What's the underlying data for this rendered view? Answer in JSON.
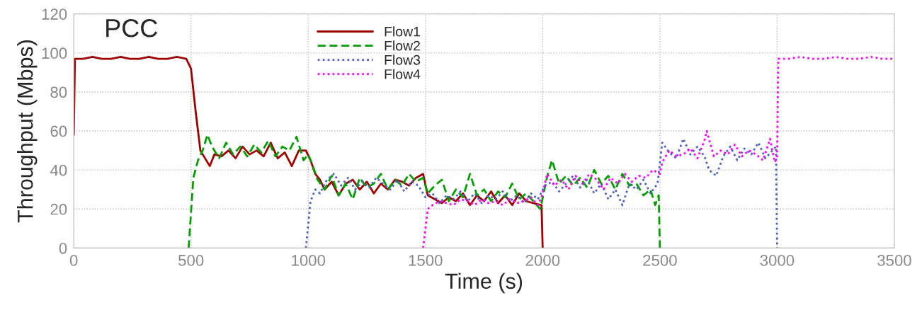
{
  "chart_data": {
    "type": "line",
    "xlabel": "Time (s)",
    "ylabel": "Throughput (Mbps)",
    "annotations": [
      "PCC"
    ],
    "xlim": [
      0,
      3500
    ],
    "xticks": [
      0,
      500,
      1000,
      1500,
      2000,
      2500,
      3000,
      3500
    ],
    "ylim": [
      0,
      120
    ],
    "yticks": [
      0,
      20,
      40,
      60,
      80,
      100,
      120
    ],
    "grid": true,
    "legend": "top",
    "series": [
      {
        "name": "Flow1",
        "color": "#a00000",
        "line_style": "solid",
        "x": [
          0,
          5,
          40,
          80,
          120,
          160,
          200,
          240,
          280,
          320,
          360,
          400,
          440,
          480,
          500,
          520,
          540,
          560,
          580,
          600,
          630,
          660,
          690,
          720,
          750,
          780,
          810,
          840,
          870,
          900,
          930,
          960,
          990,
          1010,
          1030,
          1050,
          1070,
          1100,
          1130,
          1160,
          1190,
          1220,
          1250,
          1280,
          1310,
          1340,
          1370,
          1400,
          1430,
          1460,
          1490,
          1510,
          1540,
          1570,
          1600,
          1630,
          1660,
          1690,
          1720,
          1750,
          1780,
          1810,
          1840,
          1870,
          1900,
          1930,
          1960,
          1995,
          2000
        ],
        "values": [
          58,
          97,
          97,
          98,
          97,
          97,
          98,
          97,
          97,
          98,
          97,
          97,
          98,
          97,
          92,
          70,
          50,
          46,
          42,
          48,
          47,
          50,
          46,
          52,
          48,
          50,
          47,
          54,
          46,
          49,
          42,
          50,
          50,
          45,
          38,
          35,
          30,
          34,
          27,
          33,
          35,
          30,
          34,
          28,
          33,
          30,
          35,
          34,
          32,
          36,
          38,
          27,
          25,
          23,
          26,
          24,
          28,
          22,
          27,
          24,
          29,
          23,
          27,
          22,
          28,
          24,
          23,
          22,
          0
        ]
      },
      {
        "name": "Flow2",
        "color": "#00a000",
        "line_style": "dashed",
        "x": [
          490,
          510,
          530,
          550,
          570,
          590,
          620,
          650,
          680,
          710,
          740,
          770,
          800,
          830,
          860,
          890,
          920,
          950,
          980,
          1000,
          1020,
          1040,
          1070,
          1100,
          1130,
          1160,
          1190,
          1220,
          1250,
          1280,
          1310,
          1340,
          1370,
          1400,
          1430,
          1460,
          1490,
          1510,
          1540,
          1570,
          1600,
          1630,
          1660,
          1690,
          1720,
          1750,
          1780,
          1810,
          1840,
          1870,
          1900,
          1930,
          1960,
          1990,
          2020,
          2040,
          2070,
          2100,
          2130,
          2160,
          2190,
          2220,
          2250,
          2280,
          2310,
          2340,
          2370,
          2400,
          2430,
          2460,
          2480,
          2495,
          2500
        ],
        "values": [
          0,
          36,
          45,
          50,
          58,
          52,
          46,
          54,
          48,
          52,
          47,
          53,
          49,
          55,
          47,
          52,
          50,
          57,
          45,
          48,
          42,
          35,
          30,
          37,
          27,
          33,
          25,
          36,
          31,
          33,
          38,
          30,
          35,
          32,
          38,
          34,
          36,
          28,
          32,
          35,
          24,
          30,
          26,
          38,
          27,
          30,
          24,
          29,
          26,
          33,
          25,
          28,
          24,
          20,
          37,
          45,
          33,
          37,
          32,
          36,
          31,
          40,
          33,
          37,
          30,
          38,
          32,
          33,
          27,
          30,
          22,
          27,
          0
        ]
      },
      {
        "name": "Flow3",
        "color": "#5060c0",
        "line_style": "dotted",
        "x": [
          990,
          1010,
          1030,
          1050,
          1080,
          1110,
          1140,
          1170,
          1200,
          1230,
          1260,
          1290,
          1320,
          1350,
          1380,
          1410,
          1440,
          1470,
          1500,
          1530,
          1560,
          1590,
          1620,
          1650,
          1680,
          1710,
          1740,
          1770,
          1800,
          1830,
          1860,
          1890,
          1920,
          1950,
          1980,
          2010,
          2040,
          2070,
          2100,
          2130,
          2160,
          2190,
          2220,
          2250,
          2280,
          2310,
          2340,
          2370,
          2400,
          2430,
          2460,
          2490,
          2510,
          2540,
          2570,
          2600,
          2630,
          2660,
          2690,
          2710,
          2740,
          2770,
          2800,
          2830,
          2860,
          2890,
          2920,
          2950,
          2980,
          2995,
          3000
        ],
        "values": [
          0,
          24,
          30,
          28,
          35,
          38,
          32,
          36,
          30,
          34,
          31,
          36,
          33,
          30,
          35,
          29,
          34,
          32,
          26,
          28,
          23,
          27,
          25,
          29,
          24,
          28,
          23,
          27,
          25,
          29,
          24,
          27,
          23,
          28,
          25,
          32,
          34,
          29,
          33,
          37,
          31,
          35,
          28,
          33,
          25,
          30,
          22,
          33,
          30,
          35,
          28,
          33,
          54,
          49,
          46,
          56,
          48,
          52,
          47,
          40,
          37,
          47,
          52,
          45,
          51,
          48,
          54,
          46,
          50,
          52,
          0
        ]
      },
      {
        "name": "Flow4",
        "color": "#ff00ff",
        "line_style": "dotted",
        "x": [
          1490,
          1500,
          1510,
          1530,
          1560,
          1590,
          1620,
          1650,
          1680,
          1710,
          1740,
          1770,
          1800,
          1830,
          1860,
          1890,
          1920,
          1950,
          1980,
          1995,
          2020,
          2050,
          2080,
          2110,
          2140,
          2170,
          2200,
          2230,
          2260,
          2290,
          2320,
          2350,
          2380,
          2410,
          2440,
          2470,
          2500,
          2510,
          2540,
          2570,
          2600,
          2630,
          2660,
          2690,
          2700,
          2730,
          2760,
          2790,
          2820,
          2850,
          2880,
          2910,
          2940,
          2970,
          2990,
          3000,
          3005,
          3050,
          3100,
          3150,
          3200,
          3250,
          3300,
          3350,
          3400,
          3450,
          3500
        ],
        "values": [
          0,
          10,
          20,
          22,
          24,
          23,
          22,
          25,
          24,
          22,
          25,
          23,
          24,
          22,
          25,
          23,
          24,
          26,
          22,
          26,
          38,
          32,
          35,
          30,
          37,
          33,
          38,
          35,
          30,
          36,
          33,
          38,
          34,
          37,
          36,
          40,
          38,
          44,
          50,
          47,
          48,
          51,
          46,
          55,
          60,
          47,
          50,
          48,
          53,
          47,
          50,
          48,
          45,
          56,
          44,
          47,
          97,
          97,
          98,
          97,
          97,
          98,
          97,
          97,
          98,
          97,
          97
        ]
      }
    ]
  }
}
